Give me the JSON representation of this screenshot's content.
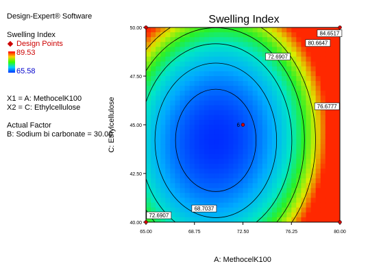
{
  "software": "Design-Expert® Software",
  "legend": {
    "response": "Swelling Index",
    "design_points_label": "Design Points",
    "max_value": "89.53",
    "min_value": "65.58",
    "colors": {
      "high": "#ff0000",
      "mid": "#33ff00",
      "low": "#0033ff",
      "design_point": "#cc0000"
    }
  },
  "factors": {
    "x1": "X1 = A: MethocelK100",
    "x2": "X2 = C: Ethylcellulose",
    "actual_factor_heading": "Actual Factor",
    "actual_factor": "B: Sodium bi carbonate = 30.00"
  },
  "chart_data": {
    "type": "contour",
    "title": "Swelling Index",
    "xlabel": "A: MethocelK100",
    "ylabel": "C: Ethylcellulose",
    "xlim": [
      65.0,
      80.0
    ],
    "ylim": [
      40.0,
      50.0
    ],
    "x_ticks": [
      "65.00",
      "68.75",
      "72.50",
      "76.25",
      "80.00"
    ],
    "y_ticks": [
      "40.00",
      "42.50",
      "45.00",
      "47.50",
      "50.00"
    ],
    "contour_labels": [
      {
        "text": "68.7037",
        "x": 69.5,
        "y": 40.7
      },
      {
        "text": "72.6907",
        "x": 66.0,
        "y": 40.35
      },
      {
        "text": "72.6907",
        "x": 75.2,
        "y": 48.5
      },
      {
        "text": "76.6777",
        "x": 79.0,
        "y": 45.95
      },
      {
        "text": "80.6647",
        "x": 78.3,
        "y": 49.2
      },
      {
        "text": "84.6517",
        "x": 79.2,
        "y": 49.7
      }
    ],
    "design_points": [
      {
        "x": 65.0,
        "y": 50.0
      },
      {
        "x": 80.0,
        "y": 50.0
      },
      {
        "x": 65.0,
        "y": 40.0
      },
      {
        "x": 80.0,
        "y": 40.0
      },
      {
        "x": 72.5,
        "y": 45.0,
        "label": "6"
      }
    ],
    "color_range": [
      65.58,
      89.53
    ]
  }
}
